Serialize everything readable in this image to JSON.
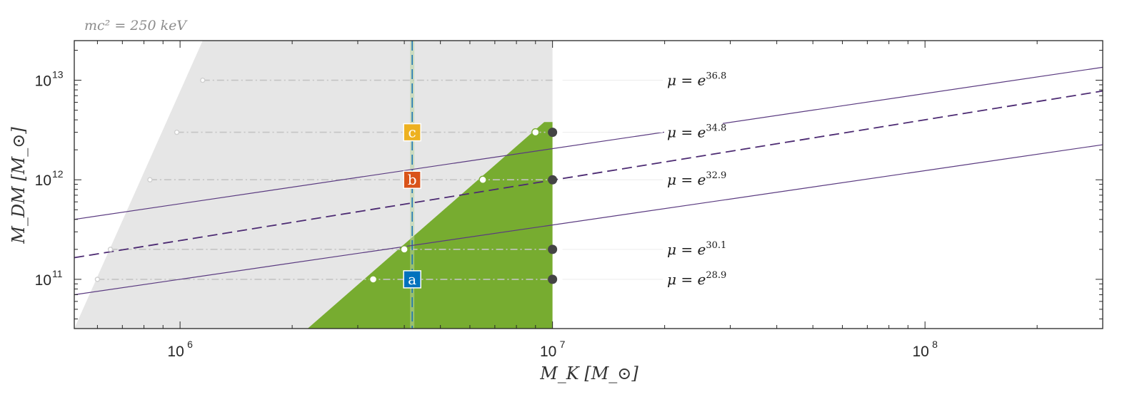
{
  "chart_data": {
    "type": "line",
    "title": "mc² = 250 keV",
    "xlabel": "M_K  [M_⊙]",
    "ylabel": "M_DM  [M_⊙]",
    "xscale": "log",
    "yscale": "log",
    "xlim": [
      520000,
      300000000
    ],
    "ylim": [
      32000000000,
      25000000000000
    ],
    "xticks": [
      {
        "value": 1000000,
        "base": "10",
        "exp": "6"
      },
      {
        "value": 10000000,
        "base": "10",
        "exp": "7"
      },
      {
        "value": 100000000,
        "base": "10",
        "exp": "8"
      }
    ],
    "yticks": [
      {
        "value": 100000000000,
        "base": "10",
        "exp": "11"
      },
      {
        "value": 1000000000000,
        "base": "10",
        "exp": "12"
      },
      {
        "value": 10000000000000,
        "base": "10",
        "exp": "13"
      }
    ],
    "grid": false,
    "colors": {
      "gray_region": "#e6e6e6",
      "green_region": "#77ac30",
      "purple_line": "#5a3a80",
      "dashed_line": "#4c2a72",
      "vline": "#1f77b4",
      "dashdot": "#c4c4c4",
      "dot_dark": "#444444",
      "marker_a": "#0072bd",
      "marker_b": "#d95319",
      "marker_c": "#edb120"
    },
    "regions": [
      {
        "name": "gray",
        "polygon": [
          [
            520000,
            32000000000
          ],
          [
            1150000,
            25000000000000
          ],
          [
            10000000,
            25000000000000
          ],
          [
            10000000,
            32000000000
          ]
        ]
      },
      {
        "name": "green",
        "polygon": [
          [
            2200000,
            32000000000
          ],
          [
            9500000,
            3800000000000
          ],
          [
            10000000,
            3800000000000
          ],
          [
            10000000,
            32000000000
          ]
        ]
      }
    ],
    "series": [
      {
        "style": "solid",
        "color_key": "purple_line",
        "x": [
          520000,
          300000000
        ],
        "y": [
          400000000000,
          13500000000000
        ]
      },
      {
        "style": "dashed",
        "color_key": "dashed_line",
        "x": [
          520000,
          300000000
        ],
        "y": [
          165000000000,
          7800000000000
        ]
      },
      {
        "style": "solid",
        "color_key": "purple_line",
        "x": [
          520000,
          300000000
        ],
        "y": [
          70000000000,
          2250000000000
        ]
      }
    ],
    "vline": {
      "x": 4200000
    },
    "levels": [
      {
        "label_mu": "μ = e",
        "exp": "36.8",
        "y": 10000000000000,
        "x_start": 1150000,
        "x_end": 10000000,
        "x_open": [
          1150000
        ],
        "dark_dot": false
      },
      {
        "label_mu": "μ = e",
        "exp": "34.8",
        "y": 3000000000000,
        "x_start": 980000,
        "x_end": 10000000,
        "x_open": [
          980000,
          9000000
        ],
        "dark_dot": true
      },
      {
        "label_mu": "μ = e",
        "exp": "32.9",
        "y": 1000000000000,
        "x_start": 830000,
        "x_end": 10000000,
        "x_open": [
          830000,
          6500000
        ],
        "dark_dot": true
      },
      {
        "label_mu": "μ = e",
        "exp": "30.1",
        "y": 200000000000,
        "x_start": 650000,
        "x_end": 10000000,
        "x_open": [
          650000,
          4000000
        ],
        "dark_dot": true
      },
      {
        "label_mu": "μ = e",
        "exp": "28.9",
        "y": 100000000000,
        "x_start": 600000,
        "x_end": 10000000,
        "x_open": [
          600000,
          3300000
        ],
        "dark_dot": true
      }
    ],
    "markers": [
      {
        "label": "c",
        "x": 4200000,
        "y": 3000000000000,
        "color_key": "marker_c"
      },
      {
        "label": "b",
        "x": 4200000,
        "y": 1000000000000,
        "color_key": "marker_b"
      },
      {
        "label": "a",
        "x": 4200000,
        "y": 100000000000,
        "color_key": "marker_a"
      }
    ]
  }
}
